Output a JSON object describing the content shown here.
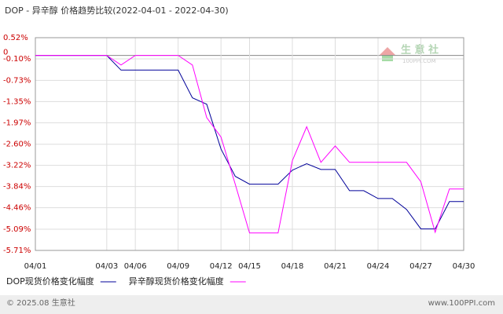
{
  "chart_data": {
    "type": "line",
    "title": "DOP - 异辛醇 价格趋势比较(2022-04-01 - 2022-04-30)",
    "watermark": {
      "name": "生 意 社",
      "site": "100PPI.COM"
    },
    "categories": [
      "04/01",
      null,
      null,
      null,
      null,
      "04/03",
      null,
      "04/06",
      null,
      null,
      "04/09",
      null,
      null,
      "04/12",
      null,
      "04/15",
      null,
      null,
      "04/18",
      null,
      null,
      "04/21",
      null,
      null,
      "04/24",
      null,
      null,
      "04/27",
      null,
      null,
      "04/30"
    ],
    "series": [
      {
        "name": "DOP现货价格变化幅度",
        "color": "#000099",
        "values": [
          0,
          0,
          0,
          0,
          0,
          0,
          -0.43,
          -0.43,
          -0.43,
          -0.43,
          -0.43,
          -1.24,
          -1.43,
          -2.74,
          -3.54,
          -3.77,
          -3.77,
          -3.77,
          -3.36,
          -3.17,
          -3.34,
          -3.34,
          -3.96,
          -3.96,
          -4.19,
          -4.19,
          -4.51,
          -5.08,
          -5.08,
          -4.28,
          -4.28
        ]
      },
      {
        "name": "异辛醇现货价格变化幅度",
        "color": "#ff00ff",
        "values": [
          0,
          0,
          0,
          0,
          0,
          0,
          -0.28,
          0,
          0,
          0,
          0,
          -0.28,
          -1.82,
          -2.39,
          -3.77,
          -5.2,
          -5.2,
          -5.2,
          -3.08,
          -2.09,
          -3.13,
          -2.65,
          -3.13,
          -3.13,
          -3.13,
          -3.13,
          -3.13,
          -3.7,
          -5.18,
          -3.91,
          -3.91
        ]
      }
    ],
    "ylim": [
      -5.71,
      0.52
    ],
    "yticks": [
      {
        "value": 0.52,
        "label": "0.52%"
      },
      {
        "value": -0.1,
        "label": "-0.10%"
      },
      {
        "value": -0.73,
        "label": "-0.73%"
      },
      {
        "value": -1.35,
        "label": "-1.35%"
      },
      {
        "value": -1.97,
        "label": "-1.97%"
      },
      {
        "value": -2.6,
        "label": "-2.60%"
      },
      {
        "value": -3.22,
        "label": "-3.22%"
      },
      {
        "value": -3.84,
        "label": "-3.84%"
      },
      {
        "value": -4.46,
        "label": "-4.46%"
      },
      {
        "value": -5.09,
        "label": "-5.09%"
      },
      {
        "value": -5.71,
        "label": "-5.71%"
      }
    ],
    "zero_line": 0,
    "grid": true
  },
  "footer": {
    "copyright": "© 2025.08 生意社",
    "site": "www.100PPI.com"
  }
}
